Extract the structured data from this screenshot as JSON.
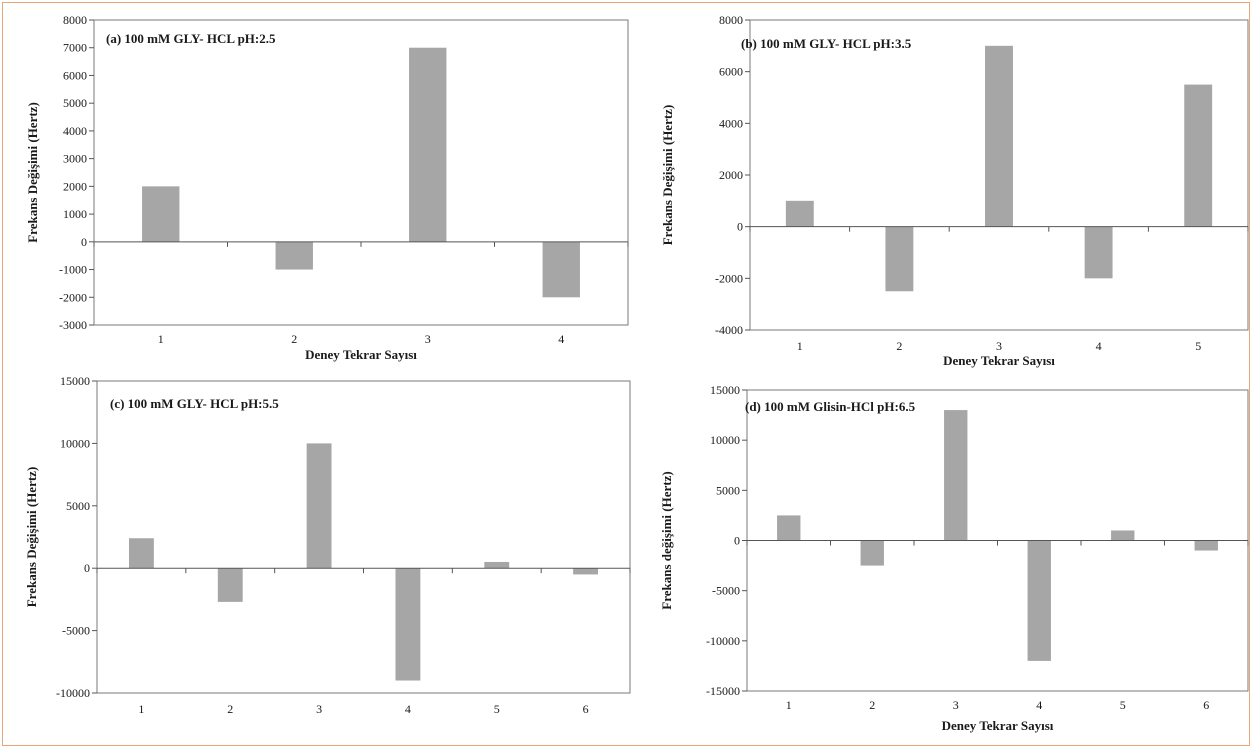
{
  "colors": {
    "bar": "#a6a6a6",
    "axis": "#555555",
    "plot_border": "#7a7a7a",
    "frame": "#e8a77a"
  },
  "chart_data": [
    {
      "type": "bar",
      "title": "(a) 100 mM GLY- HCL pH:2.5",
      "xlabel": "Deney Tekrar Sayısı",
      "ylabel": "Frekans Değişimi (Hertz)",
      "categories": [
        "1",
        "2",
        "3",
        "4"
      ],
      "values": [
        2000,
        -1000,
        7000,
        -2000
      ],
      "ylim": [
        -3000,
        8000
      ],
      "yticks": [
        "8000",
        "7000",
        "6000",
        "5000",
        "4000",
        "3000",
        "2000",
        "1000",
        "0",
        "-1000",
        "-2000",
        "-3000"
      ],
      "grid": false
    },
    {
      "type": "bar",
      "title": "(b) 100 mM GLY- HCL pH:3.5",
      "xlabel": "Deney Tekrar Sayısı",
      "ylabel": "Frekans Değişimi (Hertz)",
      "categories": [
        "1",
        "2",
        "3",
        "4",
        "5"
      ],
      "values": [
        1000,
        -2500,
        7000,
        -2000,
        5500
      ],
      "ylim": [
        -4000,
        8000
      ],
      "yticks": [
        "8000",
        "6000",
        "4000",
        "2000",
        "0",
        "-2000",
        "-4000"
      ],
      "grid": false
    },
    {
      "type": "bar",
      "title": "(c) 100 mM GLY- HCL pH:5.5",
      "xlabel": "",
      "ylabel": "Frekans Değişimi (Hertz)",
      "categories": [
        "1",
        "2",
        "3",
        "4",
        "5",
        "6"
      ],
      "values": [
        2400,
        -2700,
        10000,
        -9000,
        500,
        -500
      ],
      "ylim": [
        -10000,
        15000
      ],
      "yticks": [
        "15000",
        "10000",
        "5000",
        "0",
        "-5000",
        "-10000"
      ],
      "grid": false
    },
    {
      "type": "bar",
      "title": "(d) 100 mM Glisin-HCl pH:6.5",
      "xlabel": "Deney Tekrar Sayısı",
      "ylabel": "Frekans değişimi (Hertz)",
      "categories": [
        "1",
        "2",
        "3",
        "4",
        "5",
        "6"
      ],
      "values": [
        2500,
        -2500,
        13000,
        -12000,
        1000,
        -1000
      ],
      "ylim": [
        -15000,
        15000
      ],
      "yticks": [
        "15000",
        "10000",
        "5000",
        "0",
        "-5000",
        "-10000",
        "-15000"
      ],
      "grid": false
    }
  ]
}
